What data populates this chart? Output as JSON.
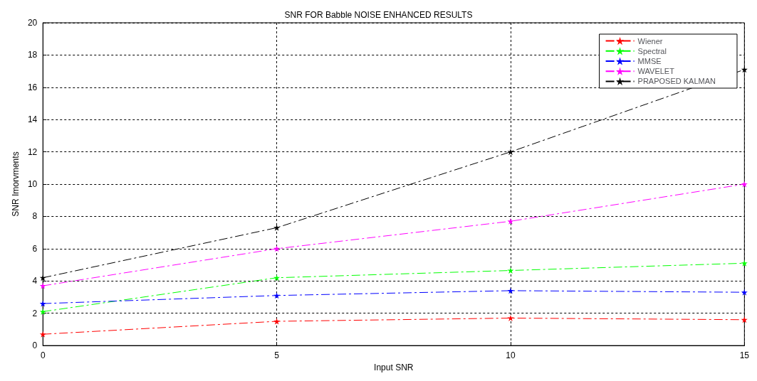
{
  "chart_data": {
    "type": "line",
    "title": "SNR FOR Babble NOISE ENHANCED RESULTS",
    "xlabel": "Input SNR",
    "ylabel": "SNR Imorvments",
    "x": [
      0,
      5,
      10,
      15
    ],
    "series": [
      {
        "name": "Wiener",
        "color": "#ff0000",
        "values": [
          0.7,
          1.5,
          1.7,
          1.6
        ]
      },
      {
        "name": "Spectral",
        "color": "#00ff00",
        "values": [
          2.1,
          4.2,
          4.65,
          5.1
        ]
      },
      {
        "name": "MMSE",
        "color": "#0000ff",
        "values": [
          2.6,
          3.1,
          3.4,
          3.3
        ]
      },
      {
        "name": "WAVELET",
        "color": "#ff00ff",
        "values": [
          3.7,
          6.0,
          7.7,
          10.0
        ]
      },
      {
        "name": "PRAPOSED KALMAN",
        "color": "#000000",
        "values": [
          4.2,
          7.3,
          12.0,
          17.1
        ]
      }
    ],
    "xlim": [
      0,
      15
    ],
    "xticks": [
      0,
      5,
      10,
      15
    ],
    "ylim": [
      0,
      20
    ],
    "yticks": [
      0,
      2,
      4,
      6,
      8,
      10,
      12,
      14,
      16,
      18,
      20
    ],
    "grid": true,
    "legend": "top right",
    "marker": "star",
    "line_style": "dashed"
  }
}
